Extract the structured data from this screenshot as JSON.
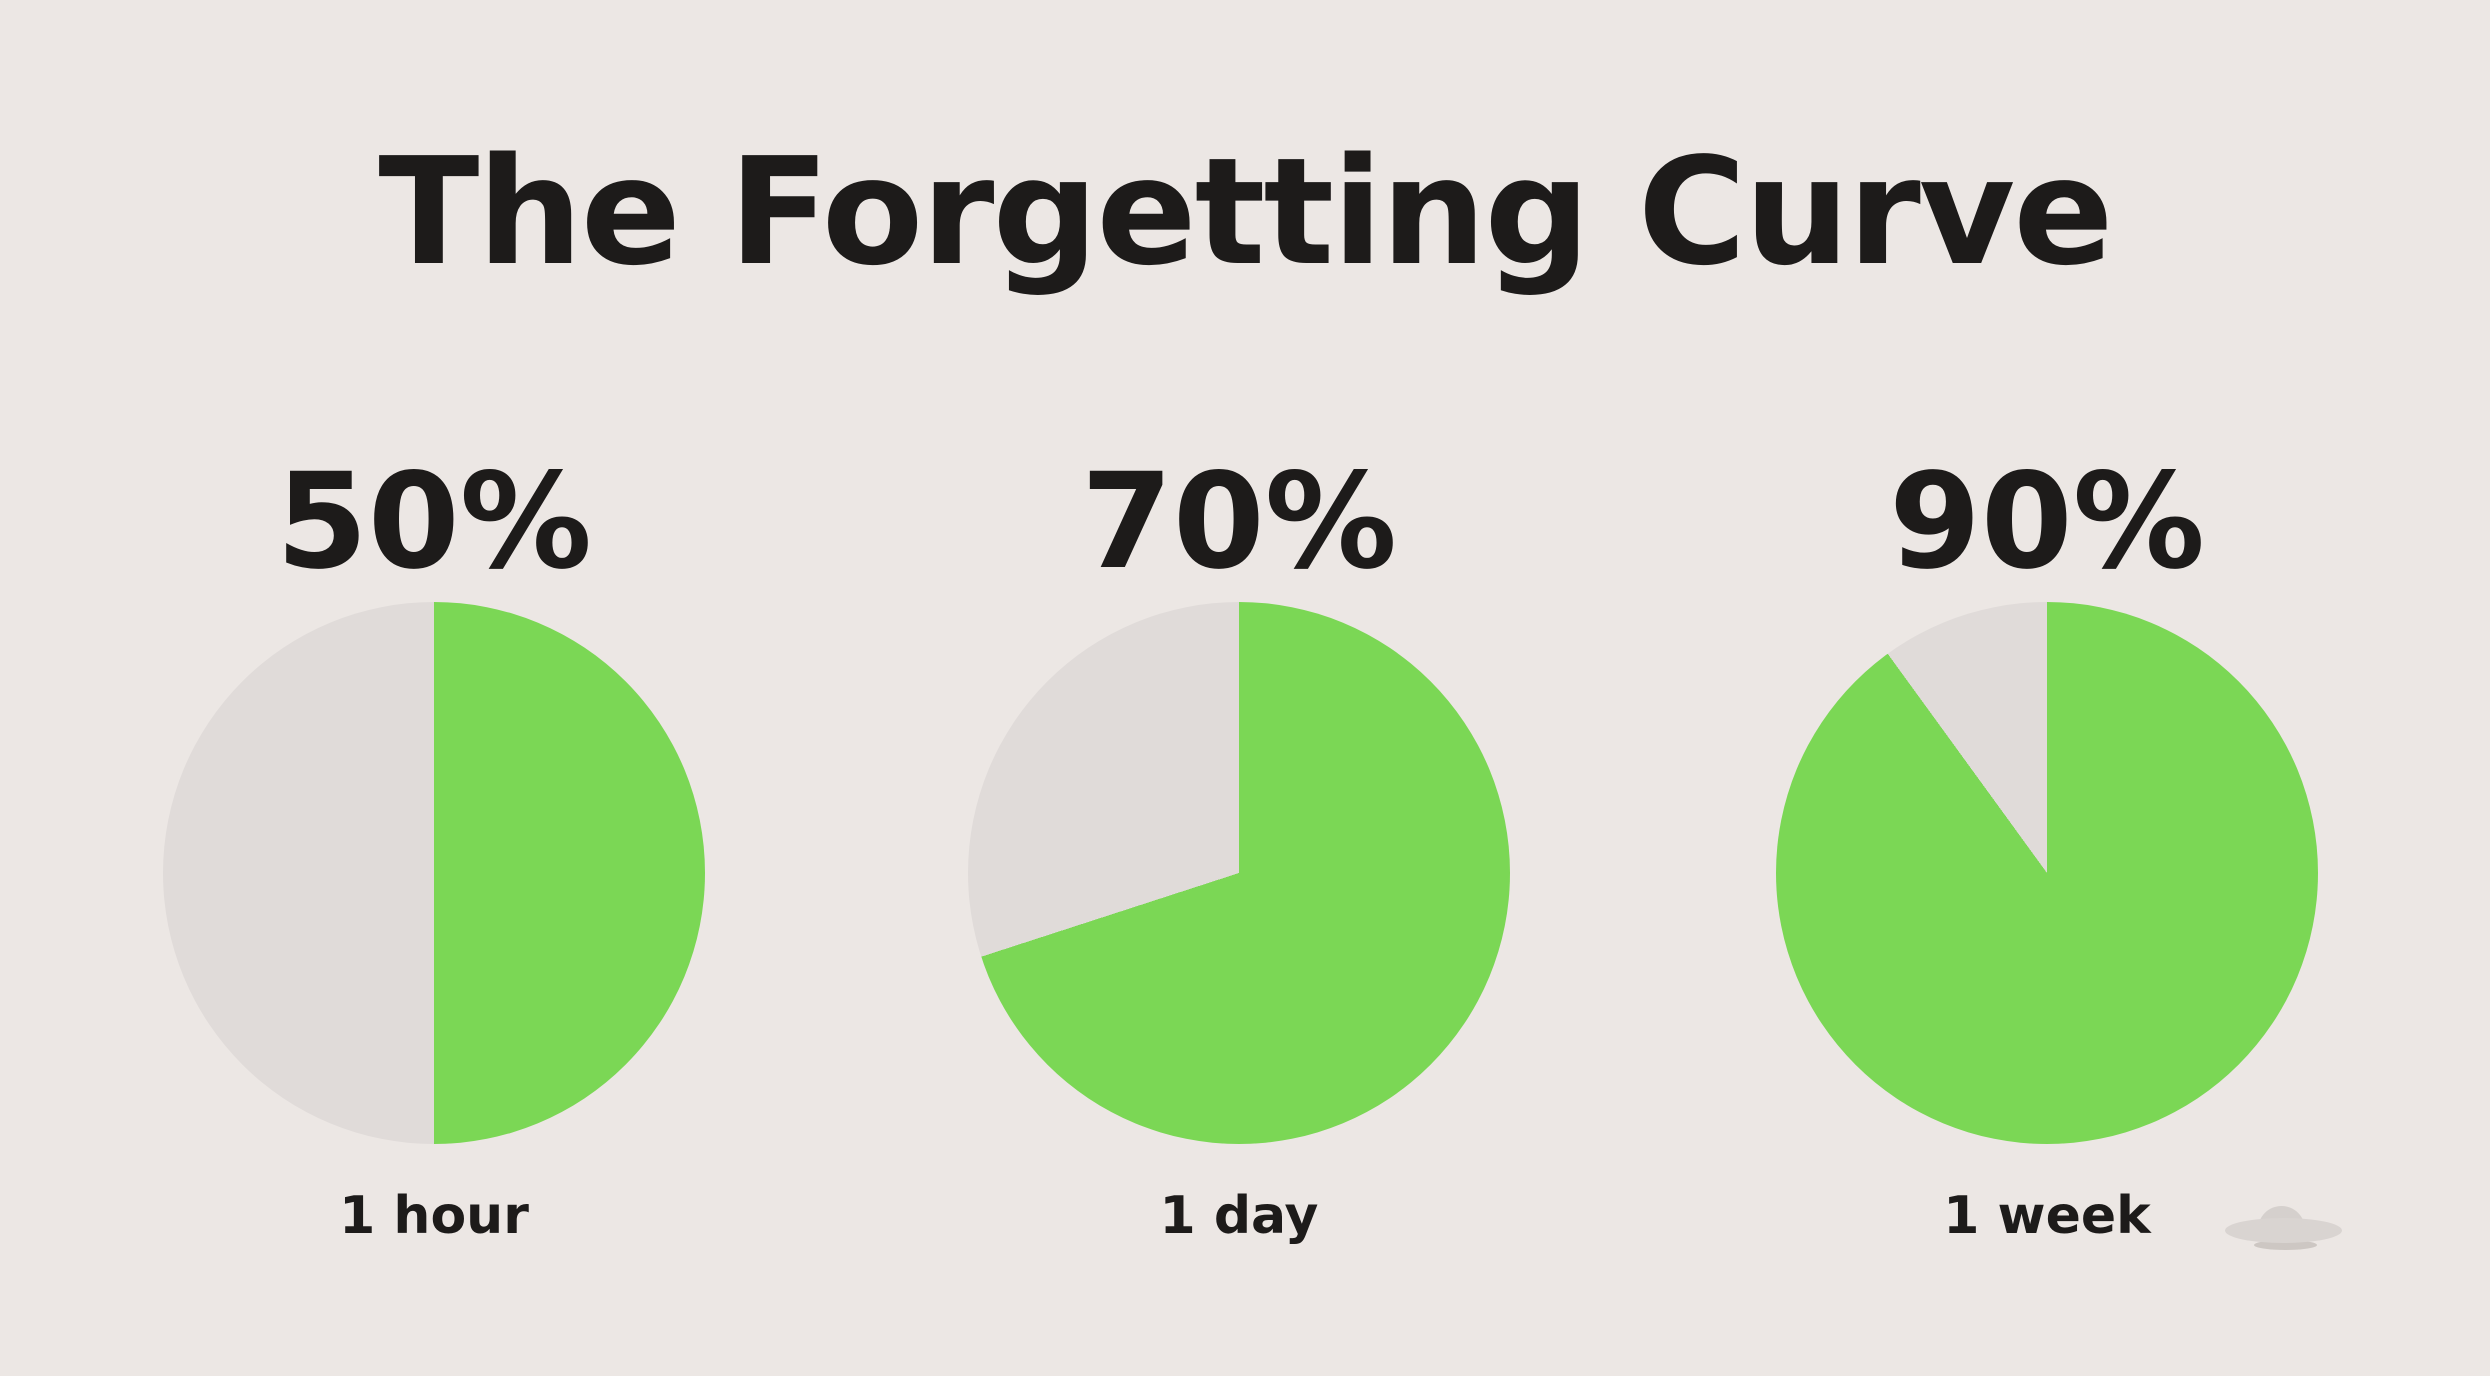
{
  "title": "The Forgetting Curve",
  "colors": {
    "background": "#ece7e4",
    "ink": "#1d1b1a",
    "slice_filled": "#7bd755",
    "slice_empty": "#e0dbd9",
    "logo": "#d9d4d1",
    "logo_dome": "#d5d0cd",
    "logo_rim": "#cdc7c3"
  },
  "chart_data": {
    "type": "pie",
    "title": "The Forgetting Curve",
    "legend": "none",
    "slice_color": "#7bd755",
    "remainder_color": "#e0dbd9",
    "slice_start": "12 o'clock, clockwise",
    "charts": [
      {
        "percent": 50,
        "percent_label": "50%",
        "time_label": "1 hour"
      },
      {
        "percent": 70,
        "percent_label": "70%",
        "time_label": "1 day"
      },
      {
        "percent": 90,
        "percent_label": "90%",
        "time_label": "1 week"
      }
    ]
  },
  "footer": {
    "logo_icon": "ufo"
  }
}
